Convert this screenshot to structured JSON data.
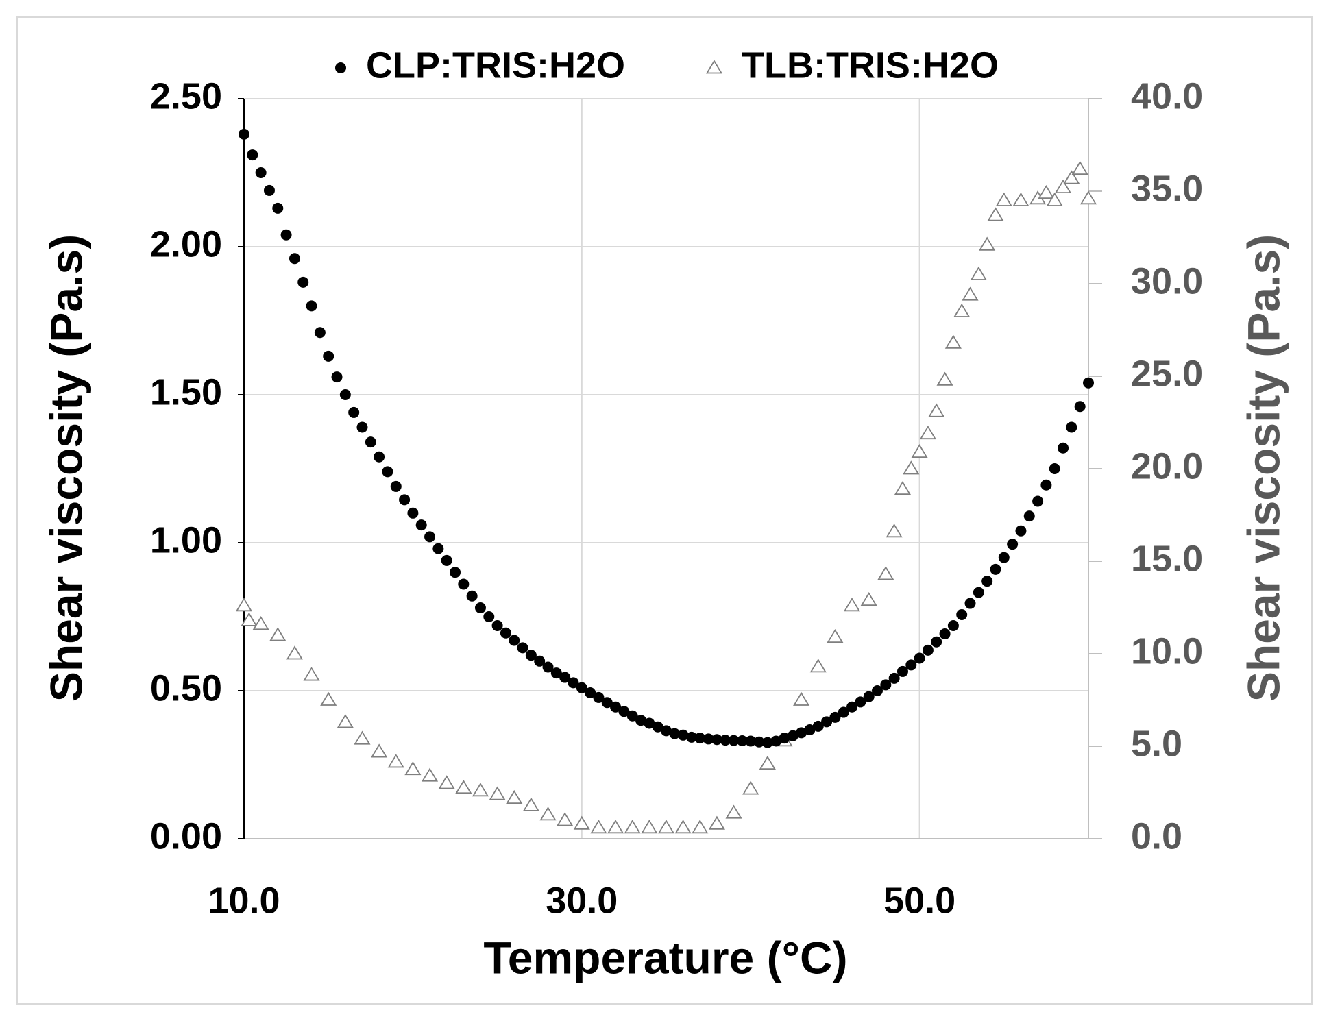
{
  "chart_data": {
    "type": "scatter",
    "xlabel": "Temperature (°C)",
    "ylabel": "Shear viscosity (Pa.s)",
    "y2label": "Shear viscosity (Pa.s)",
    "xlim": [
      10,
      60
    ],
    "xticks": [
      {
        "value": 10,
        "label": "10.0"
      },
      {
        "value": 30,
        "label": "30.0"
      },
      {
        "value": 50,
        "label": "50.0"
      }
    ],
    "ylim": [
      0,
      2.5
    ],
    "yticks": [
      {
        "value": 0,
        "label": "0.00"
      },
      {
        "value": 0.5,
        "label": "0.50"
      },
      {
        "value": 1,
        "label": "1.00"
      },
      {
        "value": 1.5,
        "label": "1.50"
      },
      {
        "value": 2,
        "label": "2.00"
      },
      {
        "value": 2.5,
        "label": "2.50"
      }
    ],
    "y2lim": [
      0,
      40
    ],
    "y2ticks": [
      {
        "value": 0,
        "label": "0.0"
      },
      {
        "value": 5,
        "label": "5.0"
      },
      {
        "value": 10,
        "label": "10.0"
      },
      {
        "value": 15,
        "label": "15.0"
      },
      {
        "value": 20,
        "label": "20.0"
      },
      {
        "value": 25,
        "label": "25.0"
      },
      {
        "value": 30,
        "label": "30.0"
      },
      {
        "value": 35,
        "label": "35.0"
      },
      {
        "value": 40,
        "label": "40.0"
      }
    ],
    "y2_color": "#595959",
    "grid": true,
    "legend": "top",
    "series": [
      {
        "name": "CLP:TRIS:H2O",
        "color": "#000000",
        "marker": "circle",
        "x": [
          10,
          10.5,
          11,
          11.5,
          12,
          12.5,
          13,
          13.5,
          14,
          14.5,
          15,
          15.5,
          16,
          16.5,
          17,
          17.5,
          18,
          18.5,
          19,
          19.5,
          20,
          20.5,
          21,
          21.5,
          22,
          22.5,
          23,
          23.5,
          24,
          24.5,
          25,
          25.5,
          26,
          26.5,
          27,
          27.5,
          28,
          28.5,
          29,
          29.5,
          30,
          30.5,
          31,
          31.5,
          32,
          32.5,
          33,
          33.5,
          34,
          34.5,
          35,
          35.5,
          36,
          36.5,
          37,
          37.5,
          38,
          38.5,
          39,
          39.5,
          40,
          40.5,
          41,
          41.5,
          42,
          42.5,
          43,
          43.5,
          44,
          44.5,
          45,
          45.5,
          46,
          46.5,
          47,
          47.5,
          48,
          48.5,
          49,
          49.5,
          50,
          50.5,
          51,
          51.5,
          52,
          52.5,
          53,
          53.5,
          54,
          54.5,
          55,
          55.5,
          56,
          56.5,
          57,
          57.5,
          58,
          58.5,
          59,
          59.5,
          60
        ],
        "values": [
          2.38,
          2.31,
          2.25,
          2.19,
          2.13,
          2.04,
          1.96,
          1.88,
          1.8,
          1.71,
          1.63,
          1.56,
          1.5,
          1.44,
          1.39,
          1.34,
          1.29,
          1.24,
          1.19,
          1.145,
          1.1,
          1.06,
          1.02,
          0.98,
          0.94,
          0.9,
          0.86,
          0.82,
          0.78,
          0.75,
          0.72,
          0.695,
          0.67,
          0.645,
          0.62,
          0.6,
          0.58,
          0.56,
          0.545,
          0.527,
          0.51,
          0.493,
          0.477,
          0.46,
          0.445,
          0.43,
          0.415,
          0.4,
          0.39,
          0.378,
          0.365,
          0.355,
          0.35,
          0.343,
          0.34,
          0.337,
          0.335,
          0.333,
          0.332,
          0.331,
          0.33,
          0.327,
          0.325,
          0.33,
          0.34,
          0.348,
          0.358,
          0.368,
          0.38,
          0.395,
          0.41,
          0.427,
          0.445,
          0.462,
          0.48,
          0.5,
          0.52,
          0.542,
          0.565,
          0.587,
          0.61,
          0.637,
          0.665,
          0.692,
          0.72,
          0.757,
          0.795,
          0.832,
          0.87,
          0.91,
          0.95,
          0.995,
          1.04,
          1.09,
          1.14,
          1.195,
          1.25,
          1.32,
          1.39,
          1.46,
          1.54
        ]
      },
      {
        "name": "TLB:TRIS:H2O",
        "color": "#7f7f7f",
        "marker": "triangle",
        "axis": "y2",
        "x": [
          10,
          10.3,
          11,
          12,
          13,
          14,
          15,
          16,
          17,
          18,
          19,
          20,
          21,
          22,
          23,
          24,
          25,
          26,
          27,
          28,
          29,
          30,
          31,
          32,
          33,
          34,
          35,
          36,
          37,
          38,
          39,
          40,
          41,
          42,
          43,
          44,
          45,
          46,
          47,
          48,
          48.5,
          49,
          49.5,
          50,
          50.5,
          51,
          51.5,
          52,
          52.5,
          53,
          53.5,
          54,
          54.5,
          55,
          56,
          57,
          57.5,
          58,
          58.5,
          59,
          59.5,
          60
        ],
        "values": [
          12.6,
          11.8,
          11.6,
          11,
          10,
          8.85,
          7.5,
          6.3,
          5.4,
          4.7,
          4.15,
          3.75,
          3.4,
          3,
          2.75,
          2.6,
          2.4,
          2.2,
          1.8,
          1.3,
          1,
          0.8,
          0.6,
          0.6,
          0.6,
          0.6,
          0.6,
          0.6,
          0.6,
          0.8,
          1.4,
          2.7,
          4.05,
          5.3,
          7.5,
          9.3,
          10.9,
          12.6,
          12.9,
          14.3,
          16.6,
          18.9,
          20,
          20.9,
          21.9,
          23.1,
          24.8,
          26.8,
          28.5,
          29.4,
          30.5,
          32.1,
          33.7,
          34.5,
          34.5,
          34.6,
          34.9,
          34.5,
          35.2,
          35.7,
          36.2,
          34.6
        ]
      }
    ]
  }
}
